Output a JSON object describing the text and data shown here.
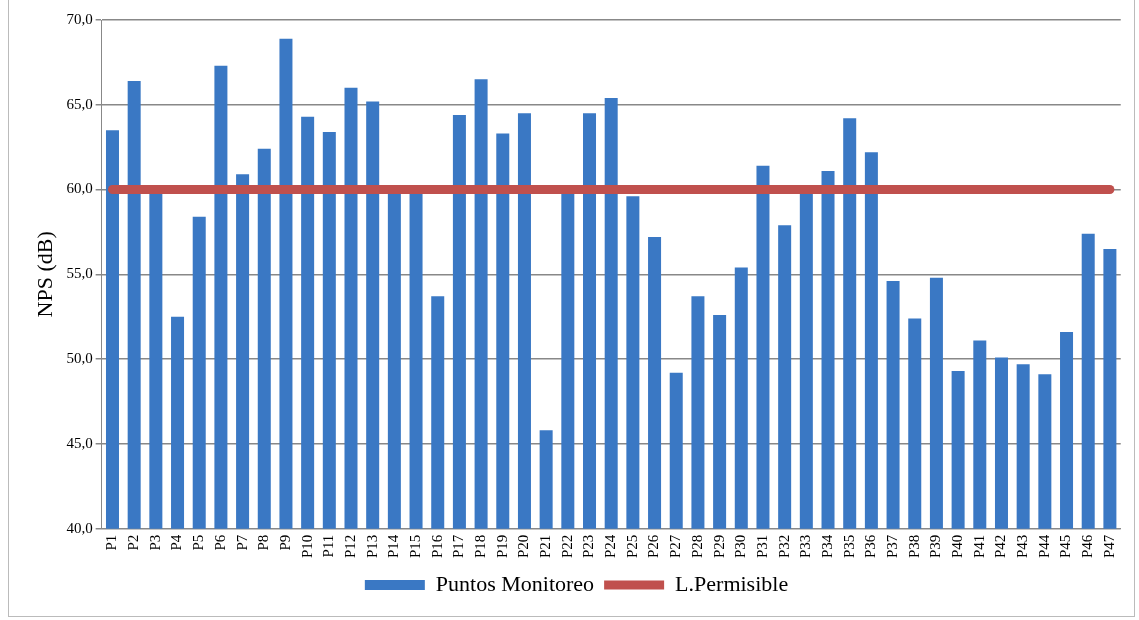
{
  "chart_data": {
    "type": "bar",
    "ylabel": "NPS (dB)",
    "categories": [
      "P1",
      "P2",
      "P3",
      "P4",
      "P5",
      "P6",
      "P7",
      "P8",
      "P9",
      "P10",
      "P11",
      "P12",
      "P13",
      "P14",
      "P15",
      "P16",
      "P17",
      "P18",
      "P19",
      "P20",
      "P21",
      "P22",
      "P23",
      "P24",
      "P25",
      "P26",
      "P27",
      "P28",
      "P29",
      "P30",
      "P31",
      "P32",
      "P33",
      "P34",
      "P35",
      "P36",
      "P37",
      "P38",
      "P39",
      "P40",
      "P41",
      "P42",
      "P43",
      "P44",
      "P45",
      "P46",
      "P47"
    ],
    "series": [
      {
        "name": "Puntos Monitoreo",
        "color": "#3a78c4",
        "values": [
          63.5,
          66.4,
          59.9,
          52.5,
          58.4,
          67.3,
          60.9,
          62.4,
          68.9,
          64.3,
          63.4,
          66.0,
          65.2,
          59.9,
          59.9,
          53.7,
          64.4,
          66.5,
          63.3,
          64.5,
          45.8,
          59.9,
          64.5,
          65.4,
          59.6,
          57.2,
          49.2,
          53.7,
          52.6,
          55.4,
          61.4,
          57.9,
          59.9,
          61.1,
          64.2,
          62.2,
          54.6,
          52.4,
          54.8,
          49.3,
          51.1,
          50.1,
          49.7,
          49.1,
          51.6,
          57.4,
          56.5
        ]
      },
      {
        "name": "L.Permisible",
        "type": "line",
        "color": "#c0504d",
        "values": [
          60,
          60,
          60,
          60,
          60,
          60,
          60,
          60,
          60,
          60,
          60,
          60,
          60,
          60,
          60,
          60,
          60,
          60,
          60,
          60,
          60,
          60,
          60,
          60,
          60,
          60,
          60,
          60,
          60,
          60,
          60,
          60,
          60,
          60,
          60,
          60,
          60,
          60,
          60,
          60,
          60,
          60,
          60,
          60,
          60,
          60,
          60
        ]
      }
    ],
    "ylim": [
      40,
      70
    ],
    "yticks": [
      {
        "value": 40,
        "label": "40,0"
      },
      {
        "value": 45,
        "label": "45,0"
      },
      {
        "value": 50,
        "label": "50,0"
      },
      {
        "value": 55,
        "label": "55,0"
      },
      {
        "value": 60,
        "label": "60,0"
      },
      {
        "value": 65,
        "label": "65,0"
      },
      {
        "value": 70,
        "label": "70,0"
      }
    ],
    "grid": "y",
    "legend": "bottom",
    "marker": "none"
  }
}
